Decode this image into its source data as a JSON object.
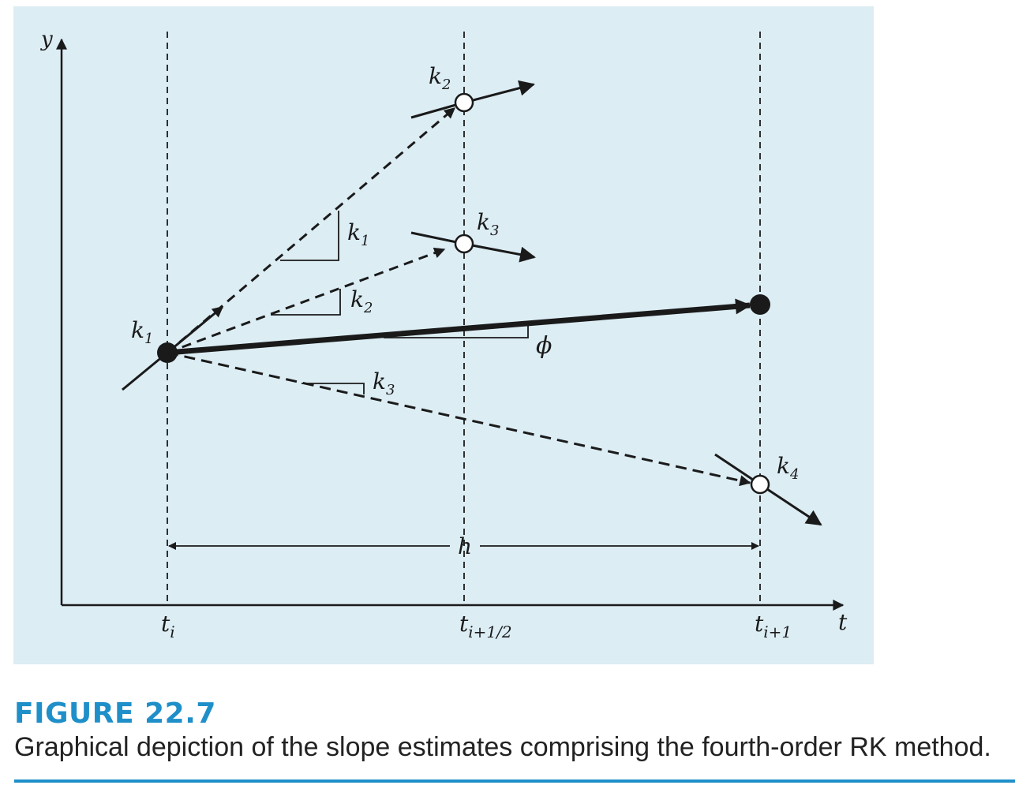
{
  "colors": {
    "panel_bg": "#dcedf4",
    "ink": "#1a1a1a",
    "caption_accent": "#1f8fc9"
  },
  "axes": {
    "y_label": "y",
    "x_label": "t"
  },
  "ticks": [
    {
      "base": "t",
      "sub": "i"
    },
    {
      "base": "t",
      "sub": "i+1/2"
    },
    {
      "base": "t",
      "sub": "i+1"
    }
  ],
  "labels": {
    "k1_start": {
      "base": "k",
      "sub": "1"
    },
    "k2_top": {
      "base": "k",
      "sub": "2"
    },
    "k3_mid": {
      "base": "k",
      "sub": "3"
    },
    "k4_end": {
      "base": "k",
      "sub": "4"
    },
    "tri_k1": {
      "base": "k",
      "sub": "1"
    },
    "tri_k2": {
      "base": "k",
      "sub": "2"
    },
    "tri_k3": {
      "base": "k",
      "sub": "3"
    },
    "phi": "ϕ",
    "step": "h"
  },
  "caption": {
    "title": "FIGURE 22.7",
    "text": "Graphical depiction of the slope estimates comprising the fourth-order RK method."
  }
}
